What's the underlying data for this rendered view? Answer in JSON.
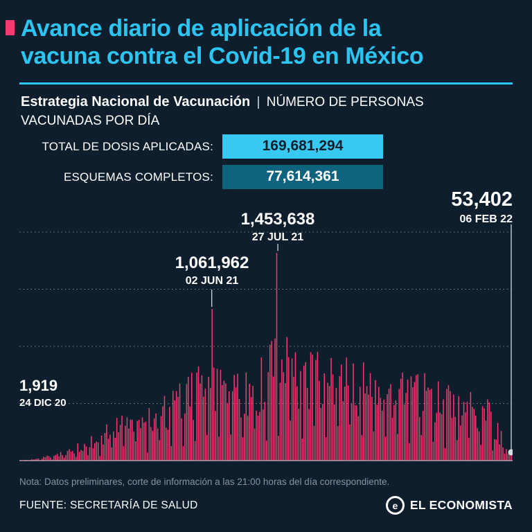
{
  "page": {
    "bg": "#0f1e2d",
    "accent_pink": "#f23a6e",
    "accent_cyan": "#2cc5f2"
  },
  "header": {
    "title_line1": "Avance diario de aplicación de la",
    "title_line2": "vacuna contra el Covid-19 en México"
  },
  "subtitle": {
    "bold": "Estrategia Nacional de Vacunación",
    "separator": "|",
    "rest_line1": "NÚMERO DE PERSONAS",
    "rest_line2": "VACUNADAS POR DÍA"
  },
  "stats": [
    {
      "label": "TOTAL DE DOSIS APLICADAS:",
      "value": "169,681,294",
      "style": "cyan"
    },
    {
      "label": "ESQUEMAS COMPLETOS:",
      "value": "77,614,361",
      "style": "teal"
    }
  ],
  "chart_data": {
    "type": "bar",
    "title": "Número de personas vacunadas por día",
    "x_start_label": "24 DIC 20",
    "x_end_label": "06 FEB 22",
    "ymax": 1600000,
    "gridline_values": [
      400000,
      800000,
      1200000,
      1600000
    ],
    "bar_color": "#f23a6e",
    "num_bars": 290,
    "noise_seed": 20220206,
    "annotations": [
      {
        "value_label": "1,919",
        "date_label": "24 DIC 20",
        "value": 1919,
        "t": 0.0
      },
      {
        "value_label": "1,061,962",
        "date_label": "02 JUN 21",
        "value": 1061962,
        "t": 0.39
      },
      {
        "value_label": "1,453,638",
        "date_label": "27 JUL 21",
        "value": 1453638,
        "t": 0.524
      },
      {
        "value_label": "53,402",
        "date_label": "06 FEB 22",
        "value": 53402,
        "t": 1.0
      }
    ],
    "envelope": [
      [
        0.0,
        2000
      ],
      [
        0.03,
        12000
      ],
      [
        0.06,
        40000
      ],
      [
        0.1,
        95000
      ],
      [
        0.14,
        170000
      ],
      [
        0.18,
        270000
      ],
      [
        0.22,
        340000
      ],
      [
        0.26,
        400000
      ],
      [
        0.3,
        500000
      ],
      [
        0.34,
        620000
      ],
      [
        0.39,
        720000
      ],
      [
        0.43,
        600000
      ],
      [
        0.47,
        660000
      ],
      [
        0.52,
        950000
      ],
      [
        0.56,
        850000
      ],
      [
        0.6,
        780000
      ],
      [
        0.65,
        820000
      ],
      [
        0.7,
        700000
      ],
      [
        0.75,
        630000
      ],
      [
        0.8,
        660000
      ],
      [
        0.85,
        560000
      ],
      [
        0.9,
        550000
      ],
      [
        0.94,
        400000
      ],
      [
        0.97,
        300000
      ],
      [
        1.0,
        53402
      ]
    ]
  },
  "footer": {
    "note": "Nota: Datos preliminares, corte de información a las 21:00 horas del día correspondiente.",
    "source": "FUENTE: SECRETARÍA DE SALUD",
    "brand": "EL ECONOMISTA",
    "brand_icon": "e"
  }
}
